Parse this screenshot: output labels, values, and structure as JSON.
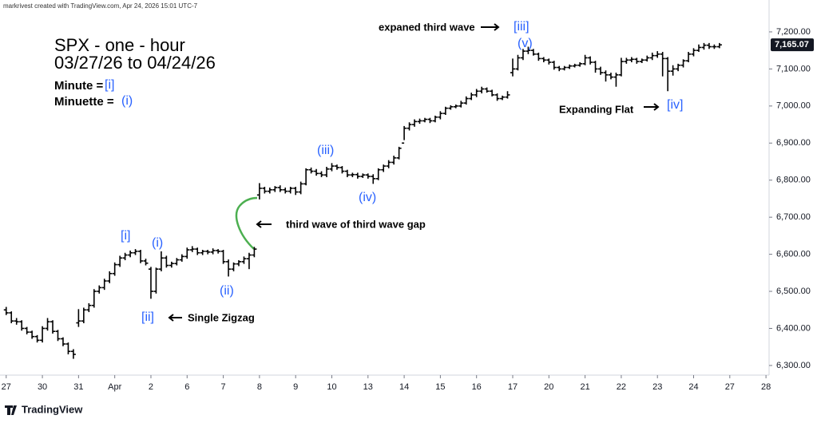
{
  "chart_data": {
    "type": "ohlc",
    "watermark": "markrivest created with TradingView.com, Apr 24, 2026 15:01 UTC-7",
    "brand": "TradingView",
    "color": "#000000",
    "accent_color": "#2962ff",
    "grid": false,
    "xlim": [
      -1.2,
      147.6
    ],
    "ylim": [
      6274,
      7286
    ],
    "yticks": [
      {
        "value": 6300,
        "label": "6,300.00"
      },
      {
        "value": 6400,
        "label": "6,400.00"
      },
      {
        "value": 6500,
        "label": "6,500.00"
      },
      {
        "value": 6600,
        "label": "6,600.00"
      },
      {
        "value": 6700,
        "label": "6,700.00"
      },
      {
        "value": 6800,
        "label": "6,800.00"
      },
      {
        "value": 6900,
        "label": "6,900.00"
      },
      {
        "value": 7000,
        "label": "7,000.00"
      },
      {
        "value": 7100,
        "label": "7,100.00"
      },
      {
        "value": 7200,
        "label": "7,200.00"
      }
    ],
    "xticks": [
      {
        "value": 0,
        "label": "27"
      },
      {
        "value": 7,
        "label": "30"
      },
      {
        "value": 14,
        "label": "31"
      },
      {
        "value": 21,
        "label": "Apr"
      },
      {
        "value": 28,
        "label": "2"
      },
      {
        "value": 35,
        "label": "6"
      },
      {
        "value": 42,
        "label": "7"
      },
      {
        "value": 49,
        "label": "8"
      },
      {
        "value": 56,
        "label": "9"
      },
      {
        "value": 63,
        "label": "10"
      },
      {
        "value": 70,
        "label": "13"
      },
      {
        "value": 77,
        "label": "14"
      },
      {
        "value": 84,
        "label": "15"
      },
      {
        "value": 91,
        "label": "16"
      },
      {
        "value": 98,
        "label": "17"
      },
      {
        "value": 105,
        "label": "20"
      },
      {
        "value": 112,
        "label": "21"
      },
      {
        "value": 119,
        "label": "22"
      },
      {
        "value": 126,
        "label": "23"
      },
      {
        "value": 133,
        "label": "24"
      },
      {
        "value": 140,
        "label": "27"
      },
      {
        "value": 147,
        "label": "28"
      }
    ],
    "last_price": {
      "value": 7165.07,
      "label": "7,165.07"
    },
    "open": [
      6450,
      6442,
      6420,
      6418,
      6400,
      6390,
      6378,
      6368,
      6400,
      6418,
      6392,
      6372,
      6358,
      6338,
      6415,
      6420,
      6450,
      6462,
      6500,
      6510,
      6528,
      6548,
      6572,
      6590,
      6598,
      6604,
      6608,
      6582,
      6560,
      6500,
      6560,
      6590,
      6570,
      6575,
      6585,
      6594,
      6612,
      6614,
      6604,
      6608,
      6606,
      6610,
      6608,
      6580,
      6560,
      6574,
      6580,
      6588,
      6598,
      6760,
      6778,
      6770,
      6774,
      6780,
      6774,
      6770,
      6778,
      6768,
      6790,
      6828,
      6824,
      6818,
      6814,
      6830,
      6838,
      6834,
      6824,
      6814,
      6815,
      6810,
      6814,
      6810,
      6804,
      6828,
      6838,
      6848,
      6860,
      6900,
      6940,
      6950,
      6958,
      6960,
      6964,
      6960,
      6970,
      6980,
      6994,
      6998,
      7000,
      7008,
      7020,
      7030,
      7040,
      7046,
      7040,
      7030,
      7020,
      7024,
      7090,
      7100,
      7130,
      7148,
      7150,
      7140,
      7128,
      7124,
      7118,
      7104,
      7100,
      7104,
      7108,
      7110,
      7114,
      7130,
      7118,
      7100,
      7090,
      7084,
      7078,
      7084,
      7120,
      7124,
      7126,
      7120,
      7124,
      7130,
      7136,
      7140,
      7128,
      7094,
      7100,
      7110,
      7122,
      7140,
      7150,
      7158,
      7164,
      7160,
      7160
    ],
    "high": [
      6458,
      6446,
      6428,
      6422,
      6404,
      6394,
      6382,
      6406,
      6428,
      6422,
      6396,
      6376,
      6362,
      6344,
      6452,
      6456,
      6468,
      6506,
      6516,
      6534,
      6554,
      6578,
      6596,
      6604,
      6610,
      6614,
      6612,
      6588,
      6566,
      6564,
      6608,
      6596,
      6580,
      6590,
      6600,
      6618,
      6622,
      6618,
      6612,
      6612,
      6616,
      6614,
      6612,
      6586,
      6578,
      6584,
      6594,
      6604,
      6620,
      6792,
      6782,
      6780,
      6784,
      6786,
      6780,
      6782,
      6782,
      6796,
      6832,
      6834,
      6830,
      6824,
      6836,
      6846,
      6842,
      6838,
      6828,
      6820,
      6820,
      6818,
      6818,
      6816,
      6832,
      6842,
      6854,
      6866,
      6890,
      6946,
      6956,
      6964,
      6966,
      6968,
      6968,
      6974,
      6986,
      6998,
      7002,
      7004,
      7014,
      7026,
      7036,
      7046,
      7052,
      7050,
      7044,
      7034,
      7028,
      7040,
      7128,
      7138,
      7154,
      7160,
      7154,
      7144,
      7132,
      7128,
      7122,
      7108,
      7108,
      7112,
      7114,
      7118,
      7138,
      7134,
      7122,
      7106,
      7096,
      7090,
      7090,
      7130,
      7130,
      7132,
      7130,
      7128,
      7136,
      7144,
      7148,
      7146,
      7132,
      7110,
      7114,
      7126,
      7146,
      7156,
      7166,
      7170,
      7170,
      7166,
      7170
    ],
    "low": [
      6436,
      6414,
      6410,
      6394,
      6384,
      6372,
      6362,
      6362,
      6394,
      6386,
      6366,
      6352,
      6330,
      6318,
      6404,
      6414,
      6444,
      6456,
      6494,
      6504,
      6522,
      6542,
      6566,
      6584,
      6592,
      6598,
      6576,
      6570,
      6480,
      6494,
      6554,
      6564,
      6564,
      6570,
      6580,
      6588,
      6606,
      6598,
      6598,
      6600,
      6600,
      6602,
      6574,
      6540,
      6554,
      6568,
      6574,
      6560,
      6592,
      6748,
      6764,
      6764,
      6768,
      6768,
      6764,
      6764,
      6760,
      6762,
      6786,
      6818,
      6812,
      6808,
      6808,
      6824,
      6828,
      6818,
      6808,
      6808,
      6804,
      6806,
      6804,
      6790,
      6800,
      6822,
      6832,
      6842,
      6856,
      6908,
      6934,
      6944,
      6952,
      6956,
      6954,
      6956,
      6964,
      6976,
      6990,
      6994,
      6996,
      7004,
      7016,
      7024,
      7034,
      7036,
      7026,
      7014,
      7016,
      7020,
      7080,
      7096,
      7124,
      7140,
      7136,
      7122,
      7118,
      7112,
      7098,
      7094,
      7096,
      7100,
      7104,
      7106,
      7110,
      7112,
      7090,
      7084,
      7066,
      7072,
      7052,
      7080,
      7114,
      7118,
      7114,
      7116,
      7120,
      7124,
      7130,
      7080,
      7040,
      7082,
      7094,
      7104,
      7118,
      7134,
      7146,
      7152,
      7154,
      7154,
      7156
    ],
    "close": [
      6442,
      6420,
      6418,
      6400,
      6390,
      6378,
      6368,
      6400,
      6418,
      6392,
      6372,
      6358,
      6338,
      6330,
      6420,
      6450,
      6462,
      6500,
      6510,
      6528,
      6548,
      6572,
      6590,
      6598,
      6604,
      6608,
      6582,
      6576,
      6500,
      6560,
      6590,
      6570,
      6575,
      6585,
      6594,
      6612,
      6614,
      6604,
      6608,
      6606,
      6610,
      6608,
      6580,
      6560,
      6574,
      6580,
      6588,
      6598,
      6614,
      6778,
      6770,
      6774,
      6780,
      6774,
      6770,
      6778,
      6768,
      6790,
      6828,
      6824,
      6818,
      6814,
      6830,
      6838,
      6834,
      6824,
      6814,
      6815,
      6810,
      6814,
      6810,
      6804,
      6828,
      6838,
      6848,
      6860,
      6886,
      6940,
      6950,
      6958,
      6960,
      6964,
      6960,
      6970,
      6980,
      6994,
      6998,
      7000,
      7008,
      7020,
      7030,
      7040,
      7046,
      7040,
      7030,
      7020,
      7024,
      7030,
      7100,
      7130,
      7148,
      7150,
      7140,
      7128,
      7124,
      7118,
      7104,
      7100,
      7104,
      7108,
      7110,
      7114,
      7130,
      7118,
      7100,
      7090,
      7084,
      7078,
      7084,
      7120,
      7124,
      7126,
      7120,
      7124,
      7130,
      7136,
      7140,
      7128,
      7094,
      7100,
      7110,
      7122,
      7140,
      7150,
      7158,
      7164,
      7160,
      7160,
      7165
    ],
    "annotations": [
      {
        "text": "SPX - one - hour",
        "color": "#000000"
      },
      {
        "text": "03/27/26 to 04/24/26",
        "color": "#000000"
      },
      {
        "text": "Minute =",
        "color": "#000000"
      },
      {
        "text": "[i]",
        "color": "#2962ff"
      },
      {
        "text": "Minuette =",
        "color": "#000000"
      },
      {
        "text": "(i)",
        "color": "#2962ff"
      },
      {
        "text": "expaned third wave",
        "color": "#000000"
      },
      {
        "text": "[iii]",
        "color": "#2962ff"
      },
      {
        "text": "(v)",
        "color": "#2962ff"
      },
      {
        "text": "Expanding Flat",
        "color": "#000000"
      },
      {
        "text": "[iv]",
        "color": "#2962ff"
      },
      {
        "text": "(iii)",
        "color": "#2962ff"
      },
      {
        "text": "(iv)",
        "color": "#2962ff"
      },
      {
        "text": "third wave of third wave gap",
        "color": "#000000"
      },
      {
        "text": "[i]",
        "color": "#2962ff"
      },
      {
        "text": "(i)",
        "color": "#2962ff"
      },
      {
        "text": "(ii)",
        "color": "#2962ff"
      },
      {
        "text": "[ii]",
        "color": "#2962ff"
      },
      {
        "text": "Single Zigzag",
        "color": "#000000"
      }
    ]
  }
}
